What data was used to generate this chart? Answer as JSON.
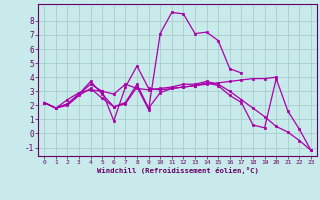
{
  "xlabel": "Windchill (Refroidissement éolien,°C)",
  "background_color": "#c8eaea",
  "grid_color": "#a0c8c8",
  "line_color": "#aa00aa",
  "xlim": [
    -0.5,
    23.5
  ],
  "ylim": [
    -1.6,
    9.2
  ],
  "xticks": [
    0,
    1,
    2,
    3,
    4,
    5,
    6,
    7,
    8,
    9,
    10,
    11,
    12,
    13,
    14,
    15,
    16,
    17,
    18,
    19,
    20,
    21,
    22,
    23
  ],
  "yticks": [
    -1,
    0,
    1,
    2,
    3,
    4,
    5,
    6,
    7,
    8
  ],
  "series": [
    {
      "x": [
        0,
        1,
        2,
        3,
        4,
        5,
        6,
        7,
        8,
        9,
        10,
        11,
        12,
        13,
        14,
        15,
        16,
        17,
        18,
        19,
        20
      ],
      "y": [
        2.2,
        1.8,
        2.1,
        2.8,
        3.5,
        3.0,
        0.9,
        3.3,
        4.8,
        3.2,
        3.1,
        3.2,
        3.3,
        3.4,
        3.5,
        3.6,
        3.7,
        3.8,
        3.9,
        3.9,
        4.0
      ]
    },
    {
      "x": [
        0,
        1,
        2,
        3,
        4,
        5,
        6,
        7,
        8,
        9,
        10,
        11,
        12,
        13,
        14,
        15,
        16,
        17
      ],
      "y": [
        2.2,
        1.8,
        2.1,
        2.8,
        3.7,
        2.8,
        1.9,
        2.1,
        3.3,
        1.7,
        7.1,
        8.6,
        8.5,
        7.1,
        7.2,
        6.6,
        4.6,
        4.3
      ]
    },
    {
      "x": [
        0,
        1,
        2,
        3,
        4,
        5,
        6,
        7,
        8,
        9,
        10,
        11,
        12,
        13,
        14,
        15,
        16,
        17,
        18,
        19,
        20,
        21,
        22,
        23
      ],
      "y": [
        2.2,
        1.8,
        2.4,
        2.9,
        3.1,
        3.0,
        2.8,
        3.5,
        3.2,
        3.1,
        3.2,
        3.3,
        3.5,
        3.5,
        3.7,
        3.5,
        3.0,
        2.4,
        1.8,
        1.2,
        0.5,
        0.1,
        -0.5,
        -1.2
      ]
    },
    {
      "x": [
        0,
        1,
        2,
        3,
        4,
        5,
        6,
        7,
        8,
        9,
        10,
        11,
        12,
        13,
        14,
        15,
        16,
        17,
        18,
        19,
        20,
        21,
        22,
        23
      ],
      "y": [
        2.2,
        1.8,
        2.0,
        2.7,
        3.2,
        2.5,
        1.9,
        2.2,
        3.5,
        1.8,
        2.9,
        3.2,
        3.3,
        3.4,
        3.6,
        3.4,
        2.7,
        2.2,
        0.6,
        0.4,
        3.9,
        1.6,
        0.3,
        -1.2
      ]
    }
  ]
}
